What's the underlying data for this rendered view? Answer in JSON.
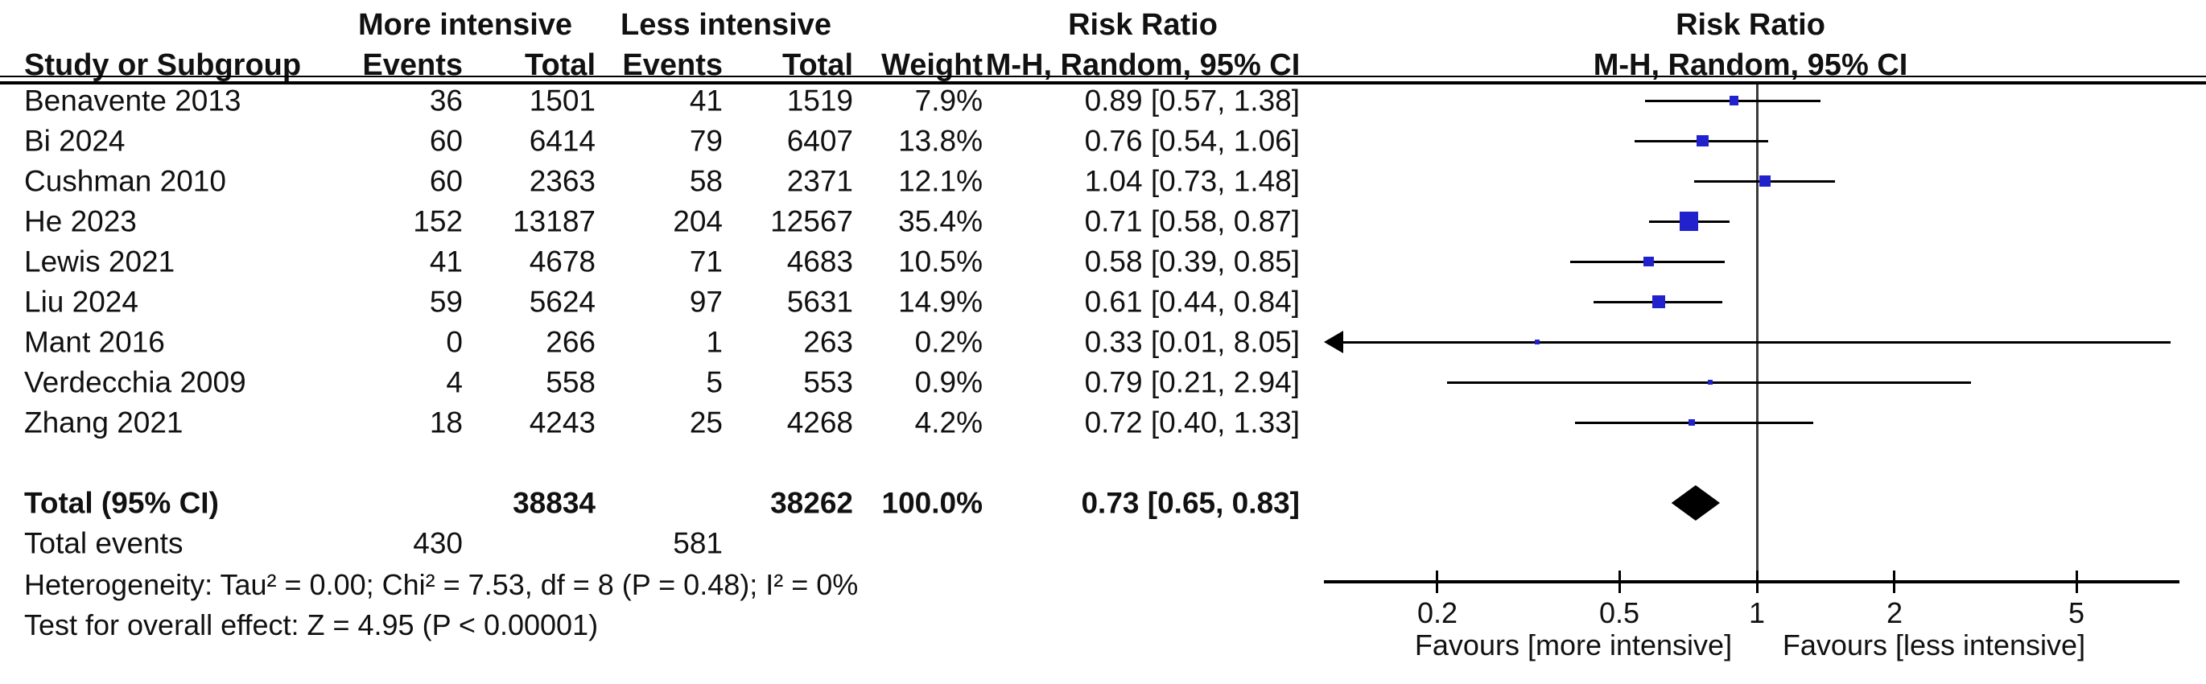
{
  "header": {
    "group_more": "More intensive",
    "group_less": "Less intensive",
    "risk_ratio": "Risk Ratio",
    "method": "M-H, Random, 95% CI",
    "study": "Study or Subgroup",
    "events": "Events",
    "total": "Total",
    "weight": "Weight"
  },
  "summary": {
    "total_label": "Total (95% CI)",
    "total_1": "38834",
    "total_2": "38262",
    "weight": "100.0%",
    "rr_label": "0.73 [0.65, 0.83]",
    "total_events_label": "Total events",
    "total_events_1": "430",
    "total_events_2": "581",
    "heterogeneity": "Heterogeneity: Tau² = 0.00; Chi² = 7.53, df = 8 (P = 0.48); I² = 0%",
    "overall_effect": "Test for overall effect: Z = 4.95 (P < 0.00001)"
  },
  "colors": {
    "square": "#2222CC",
    "diamond": "#000000",
    "line": "#000000"
  },
  "chart_data": {
    "type": "forest",
    "effect_measure": "Risk Ratio",
    "method": "M-H, Random, 95% CI",
    "x_scale": "log",
    "x_ticks": [
      0.2,
      0.5,
      1,
      2,
      5
    ],
    "axis_range_approx": [
      0.11,
      8.4
    ],
    "null_line": 1,
    "favours_left": "Favours [more intensive]",
    "favours_right": "Favours [less intensive]",
    "studies": [
      {
        "name": "Benavente 2013",
        "events_1": 36,
        "total_1": 1501,
        "events_2": 41,
        "total_2": 1519,
        "weight": "7.9%",
        "weight_pct": 7.9,
        "rr": 0.89,
        "ci_low": 0.57,
        "ci_high": 1.38,
        "label": "0.89 [0.57, 1.38]"
      },
      {
        "name": "Bi 2024",
        "events_1": 60,
        "total_1": 6414,
        "events_2": 79,
        "total_2": 6407,
        "weight": "13.8%",
        "weight_pct": 13.8,
        "rr": 0.76,
        "ci_low": 0.54,
        "ci_high": 1.06,
        "label": "0.76 [0.54, 1.06]"
      },
      {
        "name": "Cushman 2010",
        "events_1": 60,
        "total_1": 2363,
        "events_2": 58,
        "total_2": 2371,
        "weight": "12.1%",
        "weight_pct": 12.1,
        "rr": 1.04,
        "ci_low": 0.73,
        "ci_high": 1.48,
        "label": "1.04 [0.73, 1.48]"
      },
      {
        "name": "He 2023",
        "events_1": 152,
        "total_1": 13187,
        "events_2": 204,
        "total_2": 12567,
        "weight": "35.4%",
        "weight_pct": 35.4,
        "rr": 0.71,
        "ci_low": 0.58,
        "ci_high": 0.87,
        "label": "0.71 [0.58, 0.87]"
      },
      {
        "name": "Lewis 2021",
        "events_1": 41,
        "total_1": 4678,
        "events_2": 71,
        "total_2": 4683,
        "weight": "10.5%",
        "weight_pct": 10.5,
        "rr": 0.58,
        "ci_low": 0.39,
        "ci_high": 0.85,
        "label": "0.58 [0.39, 0.85]"
      },
      {
        "name": "Liu 2024",
        "events_1": 59,
        "total_1": 5624,
        "events_2": 97,
        "total_2": 5631,
        "weight": "14.9%",
        "weight_pct": 14.9,
        "rr": 0.61,
        "ci_low": 0.44,
        "ci_high": 0.84,
        "label": "0.61 [0.44, 0.84]"
      },
      {
        "name": "Mant 2016",
        "events_1": 0,
        "total_1": 266,
        "events_2": 1,
        "total_2": 263,
        "weight": "0.2%",
        "weight_pct": 0.2,
        "rr": 0.33,
        "ci_low": 0.01,
        "ci_high": 8.05,
        "label": "0.33 [0.01, 8.05]"
      },
      {
        "name": "Verdecchia 2009",
        "events_1": 4,
        "total_1": 558,
        "events_2": 5,
        "total_2": 553,
        "weight": "0.9%",
        "weight_pct": 0.9,
        "rr": 0.79,
        "ci_low": 0.21,
        "ci_high": 2.94,
        "label": "0.79 [0.21, 2.94]"
      },
      {
        "name": "Zhang 2021",
        "events_1": 18,
        "total_1": 4243,
        "events_2": 25,
        "total_2": 4268,
        "weight": "4.2%",
        "weight_pct": 4.2,
        "rr": 0.72,
        "ci_low": 0.4,
        "ci_high": 1.33,
        "label": "0.72 [0.40, 1.33]"
      }
    ],
    "total": {
      "rr": 0.73,
      "ci_low": 0.65,
      "ci_high": 0.83
    }
  }
}
